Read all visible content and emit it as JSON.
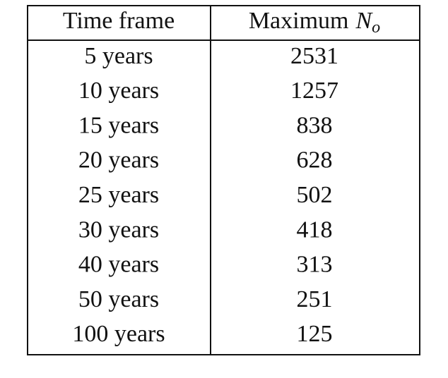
{
  "table": {
    "header": {
      "time_frame": "Time frame",
      "maximum": "Maximum",
      "symbol": "N",
      "subscript": "o"
    },
    "rows": [
      [
        "5 years",
        2531
      ],
      [
        "10 years",
        1257
      ],
      [
        "15 years",
        838
      ],
      [
        "20 years",
        628
      ],
      [
        "25 years",
        502
      ],
      [
        "30 years",
        418
      ],
      [
        "40 years",
        313
      ],
      [
        "50 years",
        251
      ],
      [
        "100 years",
        125
      ]
    ]
  }
}
